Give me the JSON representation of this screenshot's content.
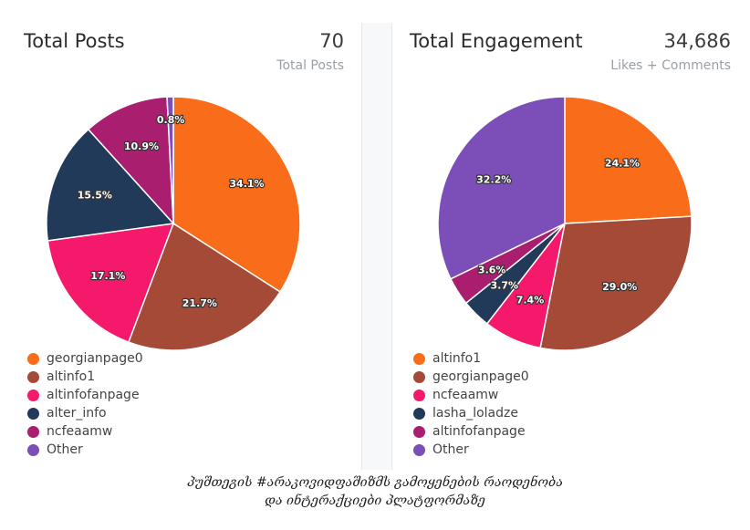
{
  "chart_data": [
    {
      "type": "pie",
      "title": "Total Posts",
      "total": "70",
      "total_label": "Total Posts",
      "slices": [
        {
          "label": "georgianpage0",
          "value": 34.1,
          "color": "#f96d1a"
        },
        {
          "label": "altinfo1",
          "value": 21.7,
          "color": "#a54a37"
        },
        {
          "label": "altinfofanpage",
          "value": 17.1,
          "color": "#f4196a"
        },
        {
          "label": "alter_info",
          "value": 15.5,
          "color": "#223a5a"
        },
        {
          "label": "ncfeaamw",
          "value": 10.9,
          "color": "#a91e6f"
        },
        {
          "label": "Other",
          "value": 0.8,
          "color": "#7b4eb8"
        }
      ],
      "legend_position": "bottom-left"
    },
    {
      "type": "pie",
      "title": "Total Engagement",
      "total": "34,686",
      "total_label": "Likes + Comments",
      "slices": [
        {
          "label": "altinfo1",
          "value": 24.1,
          "color": "#f96d1a"
        },
        {
          "label": "georgianpage0",
          "value": 29.0,
          "color": "#a54a37"
        },
        {
          "label": "ncfeaamw",
          "value": 7.4,
          "color": "#f4196a"
        },
        {
          "label": "lasha_loladze",
          "value": 3.7,
          "color": "#223a5a"
        },
        {
          "label": "altinfofanpage",
          "value": 3.6,
          "color": "#a91e6f"
        },
        {
          "label": "Other",
          "value": 32.2,
          "color": "#7b4eb8"
        }
      ],
      "legend_position": "bottom-left"
    }
  ],
  "caption": {
    "line1": "პუშთეგის #არაკოვიდფაშიზმს გამოყენების რაოდენობა",
    "line2": "და ინტერაქციები პლატფორმაზე"
  }
}
